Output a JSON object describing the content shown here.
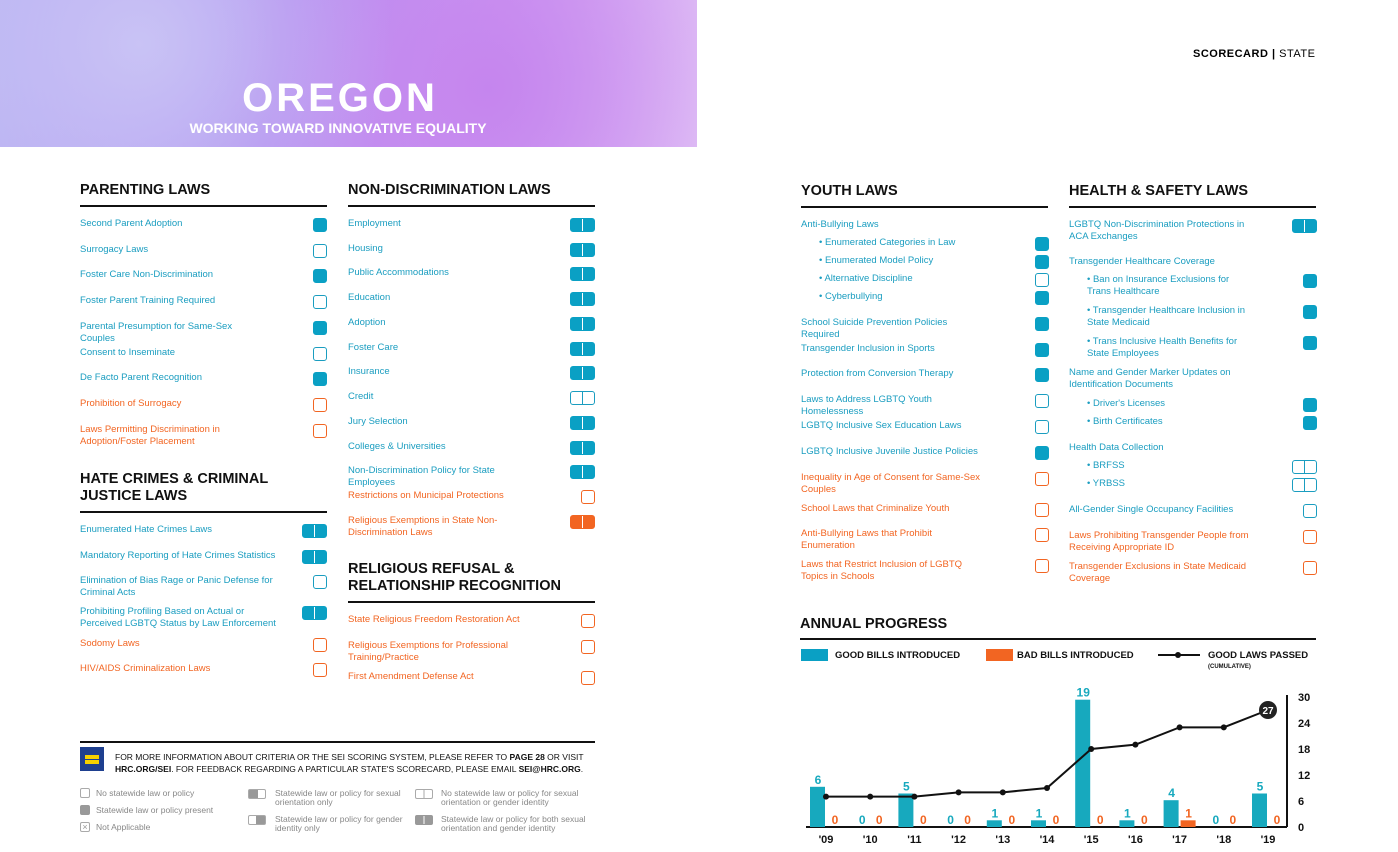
{
  "header": {
    "state": "OREGON",
    "subtitle": "WORKING TOWARD INNOVATIVE EQUALITY",
    "scorecard": "SCORECARD",
    "scorecard_sub": "STATE"
  },
  "sections": {
    "parenting": {
      "title": "PARENTING LAWS",
      "items": [
        {
          "label": "Second Parent Adoption",
          "status": "full"
        },
        {
          "label": "Surrogacy Laws",
          "status": "empty"
        },
        {
          "label": "Foster Care Non-Discrimination",
          "status": "full"
        },
        {
          "label": "Foster Parent Training Required",
          "status": "empty"
        },
        {
          "label": "Parental Presumption for Same-Sex Couples",
          "status": "full"
        },
        {
          "label": "Consent to Inseminate",
          "status": "empty"
        },
        {
          "label": "De Facto Parent Recognition",
          "status": "full"
        },
        {
          "label": "Prohibition of Surrogacy",
          "status": "neg-empty"
        },
        {
          "label": "Laws Permitting Discrimination in Adoption/Foster Placement",
          "status": "neg-empty"
        }
      ]
    },
    "hate": {
      "title": "HATE CRIMES & CRIMINAL JUSTICE LAWS",
      "items": [
        {
          "label": "Enumerated Hate Crimes Laws",
          "status": "dbl-full"
        },
        {
          "label": "Mandatory Reporting of Hate Crimes Statistics",
          "status": "dbl-full"
        },
        {
          "label": "Elimination of Bias Rage or Panic Defense for Criminal Acts",
          "status": "empty"
        },
        {
          "label": "Prohibiting Profiling Based on Actual or Perceived LGBTQ Status by Law Enforcement",
          "status": "dbl-full"
        },
        {
          "label": "Sodomy Laws",
          "status": "neg-empty"
        },
        {
          "label": "HIV/AIDS Criminalization Laws",
          "status": "neg-empty"
        }
      ]
    },
    "nondisc": {
      "title": "NON-DISCRIMINATION LAWS",
      "items": [
        {
          "label": "Employment",
          "status": "dbl-full"
        },
        {
          "label": "Housing",
          "status": "dbl-full"
        },
        {
          "label": "Public Accommodations",
          "status": "dbl-full"
        },
        {
          "label": "Education",
          "status": "dbl-full"
        },
        {
          "label": "Adoption",
          "status": "dbl-full"
        },
        {
          "label": "Foster Care",
          "status": "dbl-full"
        },
        {
          "label": "Insurance",
          "status": "dbl-full"
        },
        {
          "label": "Credit",
          "status": "dbl-empty"
        },
        {
          "label": "Jury Selection",
          "status": "dbl-full"
        },
        {
          "label": "Colleges & Universities",
          "status": "dbl-full"
        },
        {
          "label": "Non-Discrimination Policy for State Employees",
          "status": "dbl-full"
        },
        {
          "label": "Restrictions on Municipal Protections",
          "status": "neg-empty"
        },
        {
          "label": "Religious Exemptions in State Non-Discrimination Laws",
          "status": "neg-dbl-full"
        }
      ]
    },
    "religious": {
      "title": "RELIGIOUS REFUSAL & RELATIONSHIP RECOGNITION",
      "items": [
        {
          "label": "State Religious Freedom Restoration Act",
          "status": "neg-empty"
        },
        {
          "label": "Religious Exemptions for Professional Training/Practice",
          "status": "neg-empty"
        },
        {
          "label": "First Amendment Defense Act",
          "status": "neg-empty"
        }
      ]
    },
    "youth": {
      "title": "YOUTH LAWS",
      "items": [
        {
          "label": "Anti-Bullying Laws",
          "status": "none"
        },
        {
          "label": "• Enumerated Categories in Law",
          "status": "full"
        },
        {
          "label": "• Enumerated Model Policy",
          "status": "full"
        },
        {
          "label": "• Alternative Discipline",
          "status": "empty"
        },
        {
          "label": "• Cyberbullying",
          "status": "full"
        },
        {
          "label": "School Suicide Prevention Policies Required",
          "status": "full"
        },
        {
          "label": "Transgender Inclusion in Sports",
          "status": "full"
        },
        {
          "label": "Protection from Conversion Therapy",
          "status": "full"
        },
        {
          "label": "Laws to Address LGBTQ Youth Homelessness",
          "status": "empty"
        },
        {
          "label": "LGBTQ Inclusive Sex Education Laws",
          "status": "empty"
        },
        {
          "label": "LGBTQ Inclusive Juvenile Justice Policies",
          "status": "full"
        },
        {
          "label": "Inequality in Age of Consent for Same-Sex Couples",
          "status": "neg-empty"
        },
        {
          "label": "School Laws that Criminalize Youth",
          "status": "neg-empty"
        },
        {
          "label": "Anti-Bullying Laws that Prohibit Enumeration",
          "status": "neg-empty"
        },
        {
          "label": "Laws that Restrict Inclusion of LGBTQ Topics in Schools",
          "status": "neg-empty"
        }
      ]
    },
    "health": {
      "title": "HEALTH & SAFETY LAWS",
      "items": [
        {
          "label": "LGBTQ Non-Discrimination Protections in ACA Exchanges",
          "status": "dbl-full"
        },
        {
          "label": "Transgender Healthcare Coverage",
          "status": "none"
        },
        {
          "label": "• Ban on Insurance Exclusions for Trans Healthcare",
          "status": "full"
        },
        {
          "label": "• Transgender Healthcare Inclusion in State Medicaid",
          "status": "full"
        },
        {
          "label": "• Trans Inclusive Health Benefits for State Employees",
          "status": "full"
        },
        {
          "label": "Name and Gender Marker Updates on Identification Documents",
          "status": "none"
        },
        {
          "label": "• Driver's Licenses",
          "status": "full"
        },
        {
          "label": "• Birth Certificates",
          "status": "full"
        },
        {
          "label": "Health Data Collection",
          "status": "none"
        },
        {
          "label": "• BRFSS",
          "status": "dbl-empty"
        },
        {
          "label": "• YRBSS",
          "status": "dbl-empty"
        },
        {
          "label": "All-Gender Single Occupancy Facilities",
          "status": "empty"
        },
        {
          "label": "Laws Prohibiting Transgender People from Receiving Appropriate ID",
          "status": "neg-empty"
        },
        {
          "label": "Transgender Exclusions in State Medicaid Coverage",
          "status": "neg-empty"
        }
      ]
    }
  },
  "footer": {
    "note_a": "FOR MORE INFORMATION ABOUT CRITERIA OR THE SEI SCORING SYSTEM, PLEASE REFER TO ",
    "note_b": "PAGE 28",
    "note_c": " OR VISIT ",
    "note_d": "HRC.ORG/SEI",
    "note_e": ". FOR FEEDBACK REGARDING A PARTICULAR STATE'S SCORECARD, PLEASE EMAIL ",
    "note_f": "SEI@HRC.ORG",
    "note_g": ".",
    "legend": [
      "No statewide law or policy",
      "Statewide law or policy present",
      "Not Applicable",
      "Statewide law or policy for sexual orientation only",
      "Statewide law or policy for gender identity only",
      "No statewide law or policy for sexual orientation or gender identity",
      "Statewide law or policy for both sexual orientation and gender identity"
    ]
  },
  "colors": {
    "teal": "#0aa0c4",
    "orange": "#f26522"
  },
  "chart_data": {
    "type": "bar",
    "title": "ANNUAL PROGRESS",
    "categories": [
      "'09",
      "'10",
      "'11",
      "'12",
      "'13",
      "'14",
      "'15",
      "'16",
      "'17",
      "'18",
      "'19"
    ],
    "series": [
      {
        "name": "GOOD BILLS INTRODUCED",
        "type": "bar",
        "values": [
          6,
          0,
          5,
          0,
          1,
          1,
          19,
          1,
          4,
          0,
          5
        ]
      },
      {
        "name": "BAD BILLS INTRODUCED",
        "type": "bar",
        "values": [
          0,
          0,
          0,
          0,
          0,
          0,
          0,
          0,
          1,
          0,
          0
        ]
      },
      {
        "name": "GOOD LAWS PASSED",
        "note": "(CUMULATIVE)",
        "type": "line",
        "values": [
          7,
          7,
          7,
          8,
          8,
          9,
          18,
          19,
          23,
          23,
          27
        ]
      }
    ],
    "y_right_ticks": [
      "0",
      "6",
      "12",
      "18",
      "24",
      "30"
    ],
    "ylim": [
      0,
      30
    ],
    "final_label": "27",
    "legend": "top"
  }
}
